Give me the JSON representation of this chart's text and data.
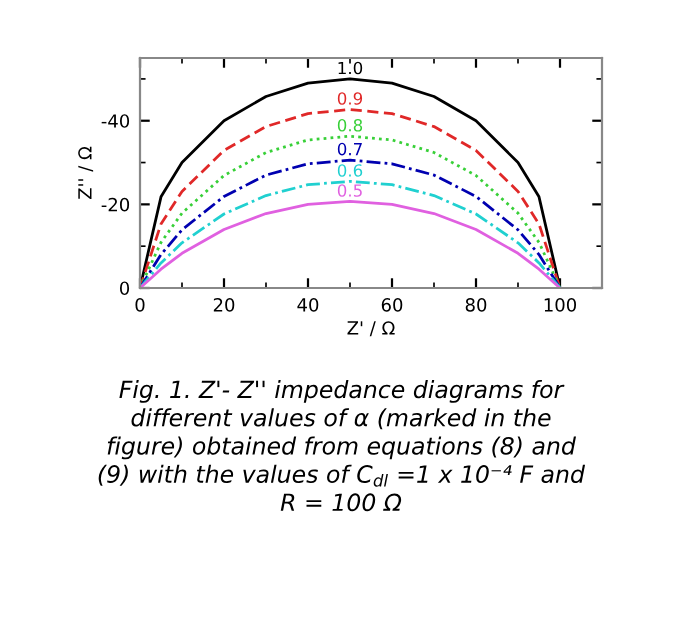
{
  "chart_data": {
    "type": "line",
    "xlabel": "Z' / Ω",
    "ylabel": "Z'' / Ω",
    "x": [
      0,
      5,
      10,
      20,
      30,
      40,
      50,
      60,
      70,
      80,
      90,
      95,
      100
    ],
    "series": [
      {
        "name": "1.0",
        "color": "#000000",
        "line_style": "solid",
        "values": [
          0,
          -21.8,
          -30,
          -40,
          -45.8,
          -49,
          -50,
          -49,
          -45.8,
          -40,
          -30,
          -21.8,
          0
        ]
      },
      {
        "name": "0.9",
        "color": "#e02828",
        "line_style": "dashed",
        "values": [
          0,
          -15.3,
          -23.1,
          -32.9,
          -38.6,
          -41.7,
          -42.7,
          -41.7,
          -38.6,
          -32.9,
          -23.1,
          -15.3,
          0
        ]
      },
      {
        "name": "0.8",
        "color": "#38d038",
        "line_style": "dotted",
        "values": [
          0,
          -10.9,
          -17.9,
          -26.9,
          -32.4,
          -35.4,
          -36.3,
          -35.4,
          -32.4,
          -26.9,
          -17.9,
          -10.9,
          0
        ]
      },
      {
        "name": "0.7",
        "color": "#0000b0",
        "line_style": "dashdot",
        "values": [
          0,
          -8,
          -13.9,
          -21.9,
          -27,
          -29.7,
          -30.6,
          -29.7,
          -27,
          -21.9,
          -13.9,
          -8,
          0
        ]
      },
      {
        "name": "0.6",
        "color": "#20d0d0",
        "line_style": "dashdot",
        "values": [
          0,
          -6,
          -10.8,
          -17.7,
          -22.1,
          -24.7,
          -25.5,
          -24.7,
          -22.1,
          -17.7,
          -10.8,
          -6,
          0
        ]
      },
      {
        "name": "0.5",
        "color": "#e060e0",
        "line_style": "solid",
        "values": [
          0,
          -4.5,
          -8.3,
          -14,
          -17.8,
          -20,
          -20.7,
          -20,
          -17.8,
          -14,
          -8.3,
          -4.5,
          0
        ]
      }
    ],
    "xlim": [
      0,
      110
    ],
    "xticks": [
      0,
      20,
      40,
      60,
      80,
      100
    ],
    "ylim": [
      0,
      -55
    ],
    "yticks": [
      0,
      -20,
      -40
    ],
    "grid": false,
    "legend": "top",
    "marker": "none",
    "annotations": [
      "Fig. 1. Z'- Z'' impedance diagrams for\ndifferent values of α (marked in the\nfigure) obtained from equations (8) and\n(9) with the values of C$_{dl}$ =1 x 10⁻⁴ F and\nR = 100 Ω"
    ]
  }
}
